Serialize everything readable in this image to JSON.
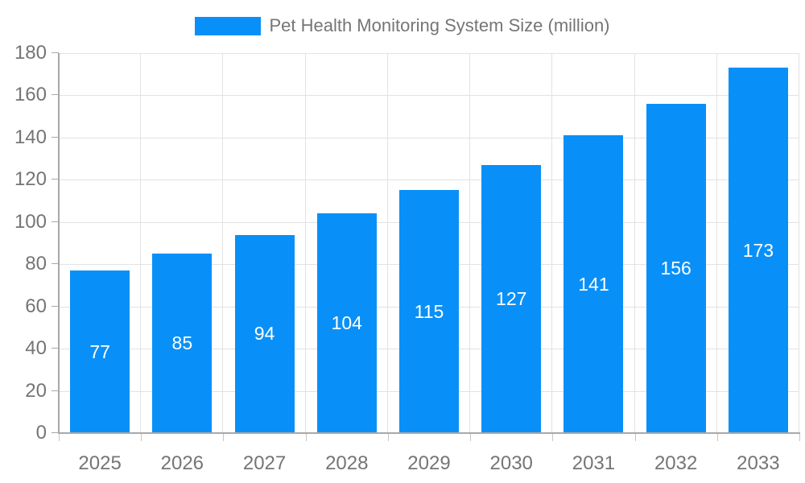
{
  "chart_data": {
    "type": "bar",
    "title": "Pet Health Monitoring System Size (million)",
    "categories": [
      "2025",
      "2026",
      "2027",
      "2028",
      "2029",
      "2030",
      "2031",
      "2032",
      "2033"
    ],
    "values": [
      77,
      85,
      94,
      104,
      115,
      127,
      141,
      156,
      173
    ],
    "xlabel": "",
    "ylabel": "",
    "ylim": [
      0,
      180
    ],
    "ytick_step": 20,
    "yticks": [
      0,
      20,
      40,
      60,
      80,
      100,
      120,
      140,
      160,
      180
    ],
    "grid": "horizontal and vertical light gridlines",
    "legend_position": "top-center",
    "bar_value_labels": "white, centered inside bars",
    "colors": {
      "bar": "#0990f8",
      "bar_label": "#ffffff",
      "axis_text": "#757575",
      "grid_line": "#e2e2e2",
      "axis_line": "#a8a8a8",
      "background": "#ffffff"
    }
  }
}
